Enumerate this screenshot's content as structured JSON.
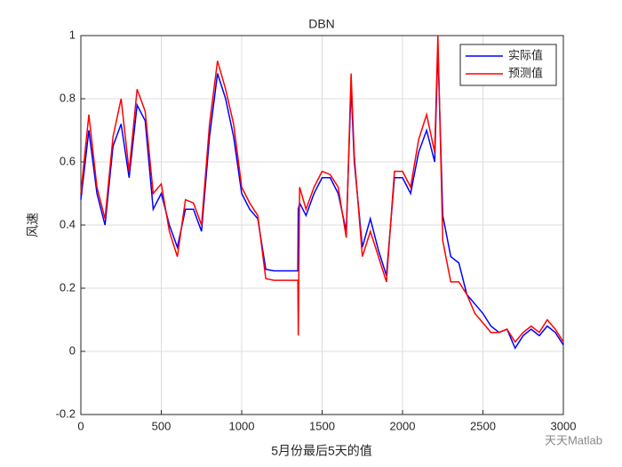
{
  "chart_data": {
    "type": "line",
    "title": "DBN",
    "xlabel": "5月份最后5天的值",
    "ylabel": "风速",
    "x": [
      0,
      50,
      100,
      150,
      200,
      250,
      300,
      350,
      400,
      450,
      500,
      550,
      600,
      650,
      700,
      750,
      800,
      850,
      900,
      950,
      1000,
      1050,
      1100,
      1150,
      1200,
      1250,
      1300,
      1349,
      1352,
      1360,
      1400,
      1450,
      1500,
      1550,
      1600,
      1650,
      1680,
      1700,
      1750,
      1800,
      1850,
      1900,
      1950,
      2000,
      2050,
      2100,
      2150,
      2200,
      2220,
      2250,
      2300,
      2350,
      2400,
      2450,
      2500,
      2550,
      2600,
      2650,
      2700,
      2750,
      2800,
      2850,
      2900,
      2950,
      3000
    ],
    "series": [
      {
        "name": "实际值",
        "color": "#0000ff",
        "values": [
          0.48,
          0.7,
          0.5,
          0.4,
          0.65,
          0.72,
          0.55,
          0.78,
          0.73,
          0.45,
          0.5,
          0.4,
          0.33,
          0.45,
          0.45,
          0.38,
          0.68,
          0.88,
          0.8,
          0.68,
          0.5,
          0.45,
          0.42,
          0.26,
          0.255,
          0.255,
          0.255,
          0.255,
          0.45,
          0.47,
          0.43,
          0.5,
          0.55,
          0.55,
          0.5,
          0.38,
          0.84,
          0.6,
          0.33,
          0.42,
          0.32,
          0.24,
          0.55,
          0.55,
          0.5,
          0.63,
          0.7,
          0.6,
          0.96,
          0.43,
          0.3,
          0.28,
          0.18,
          0.15,
          0.12,
          0.08,
          0.06,
          0.07,
          0.01,
          0.05,
          0.07,
          0.05,
          0.08,
          0.06,
          0.02
        ]
      },
      {
        "name": "预测值",
        "color": "#ff0000",
        "values": [
          0.5,
          0.75,
          0.52,
          0.42,
          0.68,
          0.8,
          0.57,
          0.83,
          0.76,
          0.5,
          0.53,
          0.38,
          0.3,
          0.48,
          0.47,
          0.4,
          0.72,
          0.92,
          0.83,
          0.72,
          0.52,
          0.47,
          0.43,
          0.23,
          0.225,
          0.225,
          0.225,
          0.225,
          0.05,
          0.52,
          0.45,
          0.52,
          0.57,
          0.56,
          0.52,
          0.36,
          0.88,
          0.62,
          0.3,
          0.38,
          0.3,
          0.22,
          0.57,
          0.57,
          0.52,
          0.67,
          0.75,
          0.63,
          1.0,
          0.35,
          0.22,
          0.22,
          0.18,
          0.12,
          0.09,
          0.06,
          0.06,
          0.07,
          0.03,
          0.06,
          0.08,
          0.06,
          0.1,
          0.07,
          0.03
        ]
      }
    ],
    "xlim": [
      0,
      3000
    ],
    "xticks": [
      0,
      500,
      1000,
      1500,
      2000,
      2500,
      3000
    ],
    "ylim": [
      -0.2,
      1
    ],
    "yticks": [
      -0.2,
      0,
      0.2,
      0.4,
      0.6,
      0.8,
      1
    ],
    "grid": true,
    "legend": "northeast",
    "watermark": "天天Matlab"
  }
}
